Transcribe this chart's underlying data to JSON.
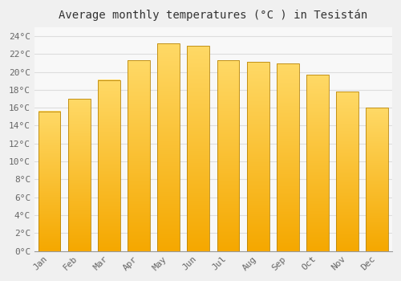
{
  "title": "Average monthly temperatures (°C ) in Tesistán",
  "months": [
    "Jan",
    "Feb",
    "Mar",
    "Apr",
    "May",
    "Jun",
    "Jul",
    "Aug",
    "Sep",
    "Oct",
    "Nov",
    "Dec"
  ],
  "values": [
    15.6,
    17.0,
    19.1,
    21.3,
    23.2,
    22.9,
    21.3,
    21.1,
    20.9,
    19.7,
    17.8,
    16.0
  ],
  "bar_color_bottom": "#F5A800",
  "bar_color_top": "#FFD966",
  "bar_edge_color": "#B8860B",
  "ylim": [
    0,
    25
  ],
  "yticks": [
    0,
    2,
    4,
    6,
    8,
    10,
    12,
    14,
    16,
    18,
    20,
    22,
    24
  ],
  "background_color": "#f0f0f0",
  "plot_bg_color": "#f8f8f8",
  "grid_color": "#dddddd",
  "title_fontsize": 10,
  "tick_fontsize": 8,
  "tick_color": "#666666"
}
